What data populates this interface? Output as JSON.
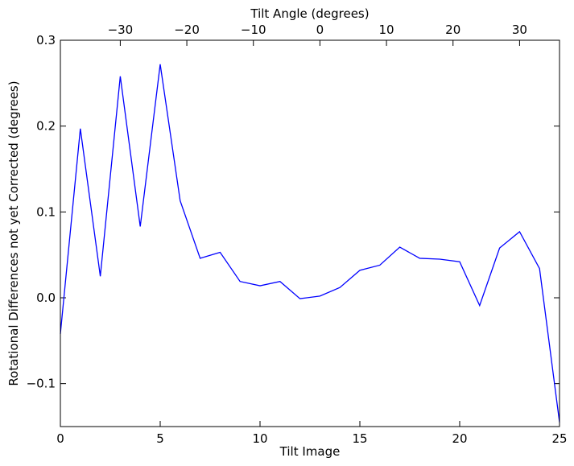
{
  "chart_data": {
    "type": "line",
    "xlabel": "Tilt Image",
    "ylabel": "Rotational Differences not yet Corrected (degrees)",
    "top_xlabel": "Tilt Angle (degrees)",
    "xlim": [
      0,
      25
    ],
    "ylim": [
      -0.15,
      0.3
    ],
    "top_xlim": [
      -39,
      36
    ],
    "grid": false,
    "line_color": "#0000ff",
    "x_ticks": [
      0,
      5,
      10,
      15,
      20,
      25
    ],
    "x_tick_labels": [
      "0",
      "5",
      "10",
      "15",
      "20",
      "25"
    ],
    "y_ticks": [
      -0.1,
      0.0,
      0.1,
      0.2,
      0.3
    ],
    "y_tick_labels": [
      "−0.1",
      "0.0",
      "0.1",
      "0.2",
      "0.3"
    ],
    "top_ticks": [
      -30,
      -20,
      -10,
      0,
      10,
      20,
      30
    ],
    "top_tick_labels": [
      "−30",
      "−20",
      "−10",
      "0",
      "10",
      "20",
      "30"
    ],
    "series": [
      {
        "x": [
          0,
          1,
          2,
          3,
          4,
          5,
          6,
          7,
          8,
          9,
          10,
          11,
          12,
          13,
          14,
          15,
          16,
          17,
          18,
          19,
          20,
          21,
          22,
          23,
          24,
          25
        ],
        "values": [
          -0.042,
          0.197,
          0.025,
          0.258,
          0.083,
          0.272,
          0.113,
          0.046,
          0.053,
          0.019,
          0.014,
          0.019,
          -0.001,
          0.002,
          0.012,
          0.032,
          0.038,
          0.059,
          0.046,
          0.045,
          0.042,
          -0.009,
          0.058,
          0.077,
          0.034,
          -0.145
        ]
      }
    ]
  }
}
